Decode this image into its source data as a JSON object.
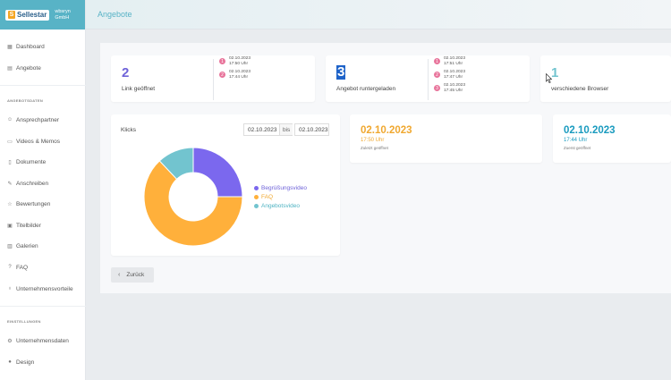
{
  "brand": {
    "logo_text": "Sellestar",
    "company_line1": "wbsryn",
    "company_line2": "GmbH"
  },
  "header": {
    "title": "Angebote"
  },
  "sidebar": {
    "top_items": [
      {
        "label": "Dashboard",
        "icon": "grid-icon"
      },
      {
        "label": "Angebote",
        "icon": "document-icon"
      }
    ],
    "section1_label": "ANGEBOTSDATEN",
    "section1_items": [
      {
        "label": "Ansprechpartner",
        "icon": "person-icon"
      },
      {
        "label": "Videos & Memos",
        "icon": "video-icon"
      },
      {
        "label": "Dokumente",
        "icon": "file-icon"
      },
      {
        "label": "Anschreiben",
        "icon": "pen-icon"
      },
      {
        "label": "Bewertungen",
        "icon": "star-icon"
      },
      {
        "label": "Titelbilder",
        "icon": "image-icon"
      },
      {
        "label": "Galerien",
        "icon": "gallery-icon"
      },
      {
        "label": "FAQ",
        "icon": "help-icon"
      },
      {
        "label": "Unternehmensvorteile",
        "icon": "badge-icon"
      }
    ],
    "section2_label": "EINSTELLUNGEN",
    "section2_items": [
      {
        "label": "Unternehmensdaten",
        "icon": "gear-icon"
      },
      {
        "label": "Design",
        "icon": "palette-icon"
      }
    ]
  },
  "cards": {
    "link": {
      "count": "2",
      "label": "Link geöffnet",
      "entries": [
        {
          "n": "1",
          "date": "02.10.2023",
          "time": "17:50 Uhr"
        },
        {
          "n": "2",
          "date": "02.10.2023",
          "time": "17:44 Uhr"
        }
      ]
    },
    "download": {
      "count": "3",
      "label": "Angebot runtergeladen",
      "entries": [
        {
          "n": "1",
          "date": "02.10.2023",
          "time": "17:51 Uhr"
        },
        {
          "n": "2",
          "date": "02.10.2023",
          "time": "17:47 Uhr"
        },
        {
          "n": "3",
          "date": "02.10.2023",
          "time": "17:45 Uhr"
        }
      ]
    },
    "browser": {
      "count": "1",
      "label": "verschiedene Browser"
    }
  },
  "klicks": {
    "title": "Klicks",
    "date_from": "02.10.2023",
    "separator": "bis",
    "date_to": "02.10.2023",
    "legend": [
      {
        "label": "Begrüßungsvideo",
        "color": "#7b68ee"
      },
      {
        "label": "FAQ",
        "color": "#ffb03b"
      },
      {
        "label": "Angebotsvideo",
        "color": "#72c4cf"
      }
    ]
  },
  "chart_data": {
    "type": "pie",
    "categories": [
      "Begrüßungsvideo",
      "FAQ",
      "Angebotsvideo"
    ],
    "values": [
      25,
      63,
      12
    ],
    "colors": [
      "#7b68ee",
      "#ffb03b",
      "#72c4cf"
    ],
    "donut": true,
    "legend": "right"
  },
  "stats": {
    "last_opened": {
      "date": "02.10.2023",
      "time": "17:50 Uhr",
      "label": "Zuletzt geöffnet",
      "color": "#f0a830"
    },
    "first_opened": {
      "date": "02.10.2023",
      "time": "17:44 Uhr",
      "label": "Zuerst geöffnet",
      "color": "#1a9bbf"
    }
  },
  "back_button": {
    "label": "Zurück"
  }
}
